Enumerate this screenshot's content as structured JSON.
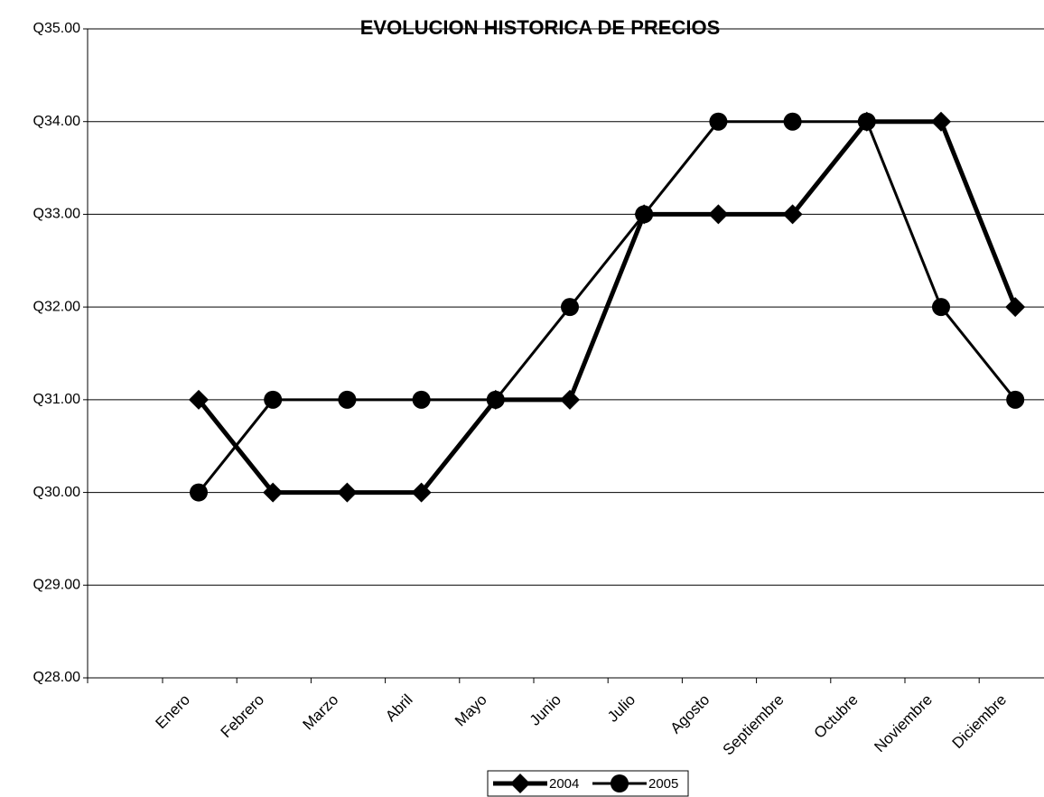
{
  "chart_data": {
    "type": "line",
    "title": "EVOLUCION HISTORICA DE PRECIOS",
    "categories": [
      "Enero",
      "Febrero",
      "Marzo",
      "Abril",
      "Mayo",
      "Junio",
      "Julio",
      "Agosto",
      "Septiembre",
      "Octubre",
      "Noviembre",
      "Diciembre"
    ],
    "series": [
      {
        "name": "2004",
        "color": "#000000",
        "marker": "diamond",
        "values": [
          31,
          30,
          30,
          30,
          31,
          31,
          33,
          33,
          33,
          34,
          34,
          32
        ]
      },
      {
        "name": "2005",
        "color": "#000000",
        "marker": "circle",
        "values": [
          30,
          31,
          31,
          31,
          31,
          32,
          33,
          34,
          34,
          34,
          32,
          31
        ]
      }
    ],
    "ylim": [
      28,
      35
    ],
    "yticks": [
      {
        "value": 28,
        "label": "Q28.00"
      },
      {
        "value": 29,
        "label": "Q29.00"
      },
      {
        "value": 30,
        "label": "Q30.00"
      },
      {
        "value": 31,
        "label": "Q31.00"
      },
      {
        "value": 32,
        "label": "Q32.00"
      },
      {
        "value": 33,
        "label": "Q33.00"
      },
      {
        "value": 34,
        "label": "Q34.00"
      },
      {
        "value": 35,
        "label": "Q35.00"
      }
    ],
    "grid": true,
    "legend": "bottom"
  }
}
